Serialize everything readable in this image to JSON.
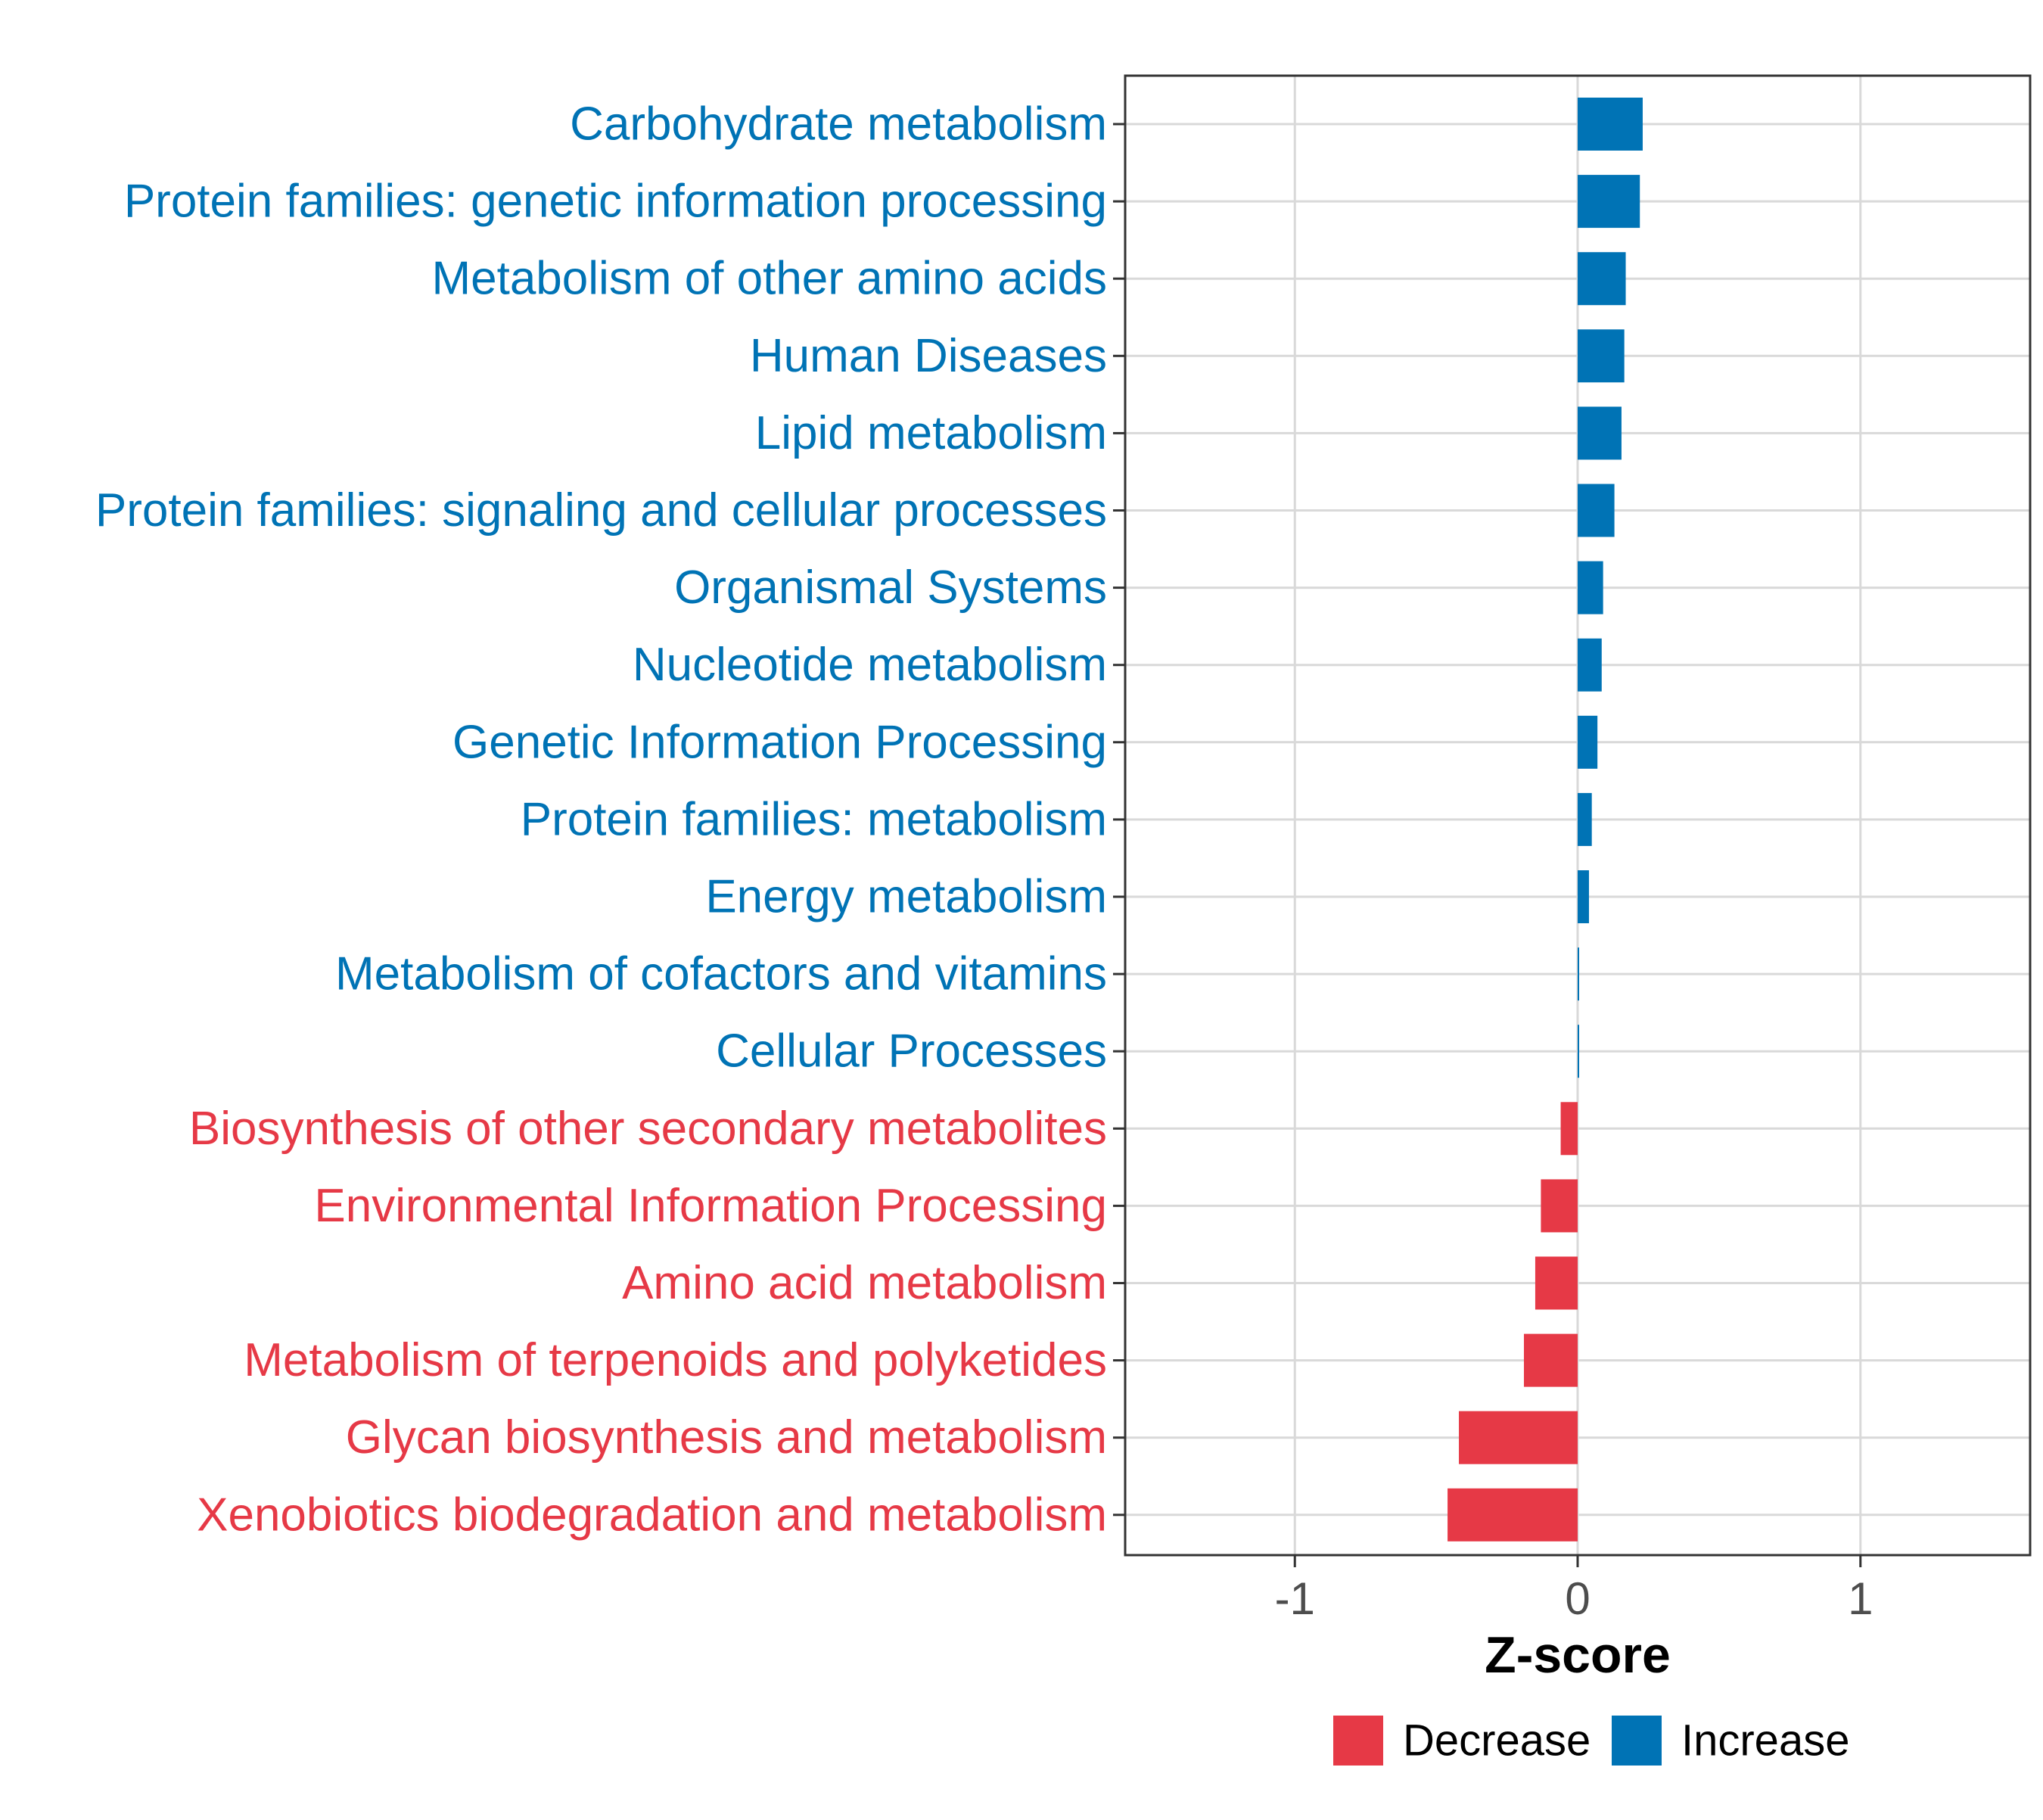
{
  "colors": {
    "increase": "#0073b5",
    "decrease": "#e63946",
    "grid": "#d9d9d9",
    "panel_border": "#333333",
    "tick_text": "#4d4d4d"
  },
  "chart_data": {
    "type": "bar",
    "orientation": "horizontal",
    "xlabel": "Z-score",
    "xlim": [
      -1.6,
      1.6
    ],
    "xticks": [
      -1,
      0,
      1
    ],
    "xtick_labels": [
      "-1",
      "0",
      "1"
    ],
    "grid": true,
    "legend_position": "bottom",
    "categories": [
      "Carbohydrate metabolism",
      "Protein families: genetic information processing",
      "Metabolism of other amino acids",
      "Human Diseases",
      "Lipid metabolism",
      "Protein families: signaling and cellular processes",
      "Organismal Systems",
      "Nucleotide metabolism",
      "Genetic Information Processing",
      "Protein families: metabolism",
      "Energy metabolism",
      "Metabolism of cofactors and vitamins",
      "Cellular Processes",
      "Biosynthesis of other secondary metabolites",
      "Environmental Information Processing",
      "Amino acid metabolism",
      "Metabolism of terpenoids and polyketides",
      "Glycan biosynthesis and metabolism",
      "Xenobiotics biodegradation and metabolism"
    ],
    "values": [
      0.23,
      0.22,
      0.17,
      0.165,
      0.155,
      0.13,
      0.09,
      0.085,
      0.07,
      0.05,
      0.04,
      0.005,
      0.003,
      -0.06,
      -0.13,
      -0.15,
      -0.19,
      -0.42,
      -0.46
    ],
    "groups": [
      "Increase",
      "Increase",
      "Increase",
      "Increase",
      "Increase",
      "Increase",
      "Increase",
      "Increase",
      "Increase",
      "Increase",
      "Increase",
      "Increase",
      "Increase",
      "Decrease",
      "Decrease",
      "Decrease",
      "Decrease",
      "Decrease",
      "Decrease"
    ],
    "legend": [
      {
        "label": "Decrease",
        "color": "#e63946"
      },
      {
        "label": "Increase",
        "color": "#0073b5"
      }
    ]
  }
}
